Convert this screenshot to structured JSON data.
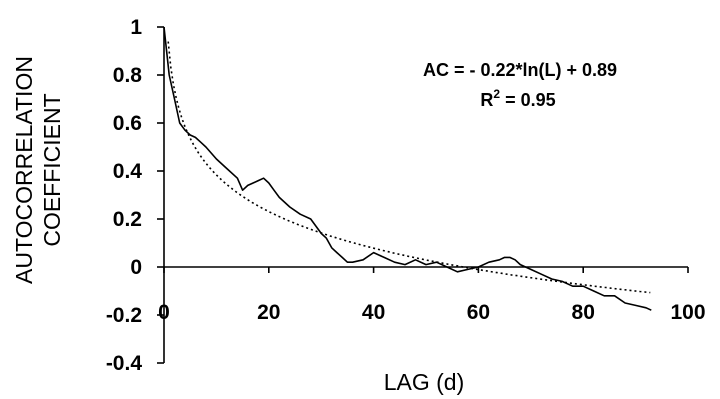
{
  "chart_data": {
    "type": "line",
    "xlabel": "LAG (d)",
    "ylabel_line1": "AUTOCORRELATION",
    "ylabel_line2": "COEFFICIENT",
    "xlim": [
      0,
      100
    ],
    "ylim": [
      -0.4,
      1
    ],
    "x_ticks": [
      "0",
      "20",
      "40",
      "60",
      "80",
      "100"
    ],
    "y_ticks": [
      "1",
      "0.8",
      "0.6",
      "0.4",
      "0.2",
      "0",
      "-0.2",
      "-0.4"
    ],
    "grid": false,
    "equation": "AC = - 0.22*ln(L) + 0.89",
    "r2_label": "R",
    "r2_exp": "2",
    "r2_value": " = 0.95",
    "series": [
      {
        "style": "solid",
        "color": "#000000",
        "x": [
          0,
          1,
          2,
          3,
          4,
          5,
          6,
          7,
          8,
          10,
          12,
          14,
          15,
          16,
          17,
          18,
          19,
          20,
          21,
          22,
          24,
          26,
          28,
          30,
          31,
          32,
          33,
          34,
          35,
          36,
          38,
          40,
          42,
          44,
          46,
          48,
          50,
          52,
          54,
          56,
          58,
          60,
          62,
          64,
          65,
          66,
          67,
          68,
          70,
          72,
          74,
          76,
          78,
          80,
          82,
          84,
          86,
          88,
          90,
          92,
          93
        ],
        "y": [
          1.0,
          0.8,
          0.7,
          0.6,
          0.57,
          0.55,
          0.54,
          0.52,
          0.5,
          0.45,
          0.41,
          0.37,
          0.32,
          0.34,
          0.35,
          0.36,
          0.37,
          0.35,
          0.32,
          0.29,
          0.25,
          0.22,
          0.2,
          0.14,
          0.12,
          0.08,
          0.06,
          0.04,
          0.02,
          0.02,
          0.03,
          0.06,
          0.04,
          0.02,
          0.01,
          0.03,
          0.01,
          0.02,
          0.0,
          -0.02,
          -0.01,
          0.0,
          0.02,
          0.03,
          0.04,
          0.04,
          0.03,
          0.01,
          -0.01,
          -0.03,
          -0.05,
          -0.06,
          -0.08,
          -0.08,
          -0.1,
          -0.12,
          -0.12,
          -0.15,
          -0.16,
          -0.17,
          -0.18
        ]
      },
      {
        "style": "dotted",
        "color": "#000000",
        "function": "-0.22*ln(L)+0.89",
        "x_range": [
          0.8,
          93
        ]
      }
    ]
  }
}
